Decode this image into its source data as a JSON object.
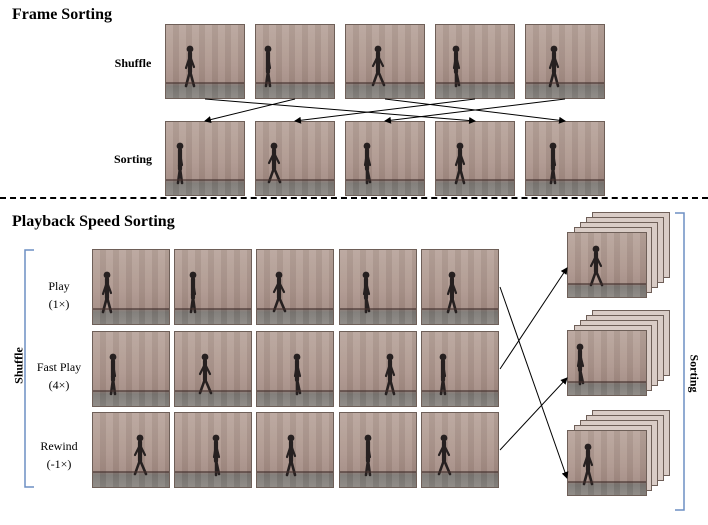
{
  "frame_sorting": {
    "title": "Frame Sorting",
    "shuffle_label": "Shuffle",
    "sorting_label": "Sorting"
  },
  "playback_speed_sorting": {
    "title": "Playback Speed Sorting",
    "group_label_left": "Shuffle",
    "group_label_right": "Sorting",
    "rows": [
      {
        "label": "Play",
        "sub": "(1×)"
      },
      {
        "label": "Fast Play",
        "sub": "(4×)"
      },
      {
        "label": "Rewind",
        "sub": "(-1×)"
      }
    ]
  },
  "colors": {
    "wall": "#b3a098",
    "floor": "#7c7874",
    "figure": "#262020",
    "arrow": "#000000"
  },
  "icons": [
    "walking-person-icon"
  ]
}
